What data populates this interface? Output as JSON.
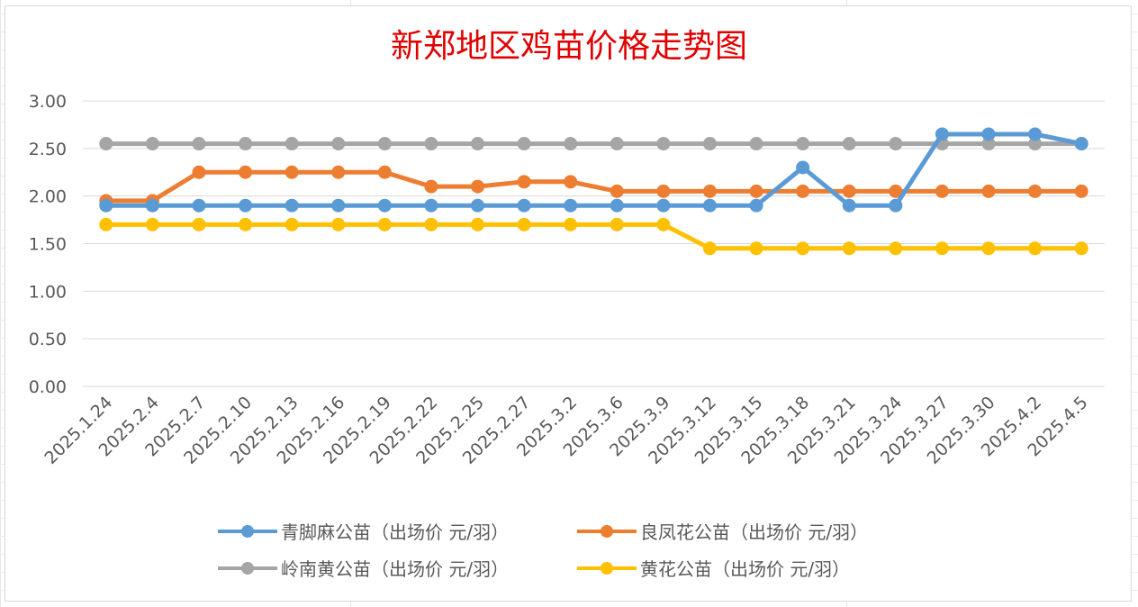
{
  "chart_data": {
    "type": "line",
    "title": "新郑地区鸡苗价格走势图",
    "xlabel": "",
    "ylabel": "",
    "ylim": [
      0,
      3
    ],
    "ytick_step": 0.5,
    "ytick_labels": [
      "0.00",
      "0.50",
      "1.00",
      "1.50",
      "2.00",
      "2.50",
      "3.00"
    ],
    "grid": true,
    "legend_position": "bottom",
    "categories": [
      "2025.1.24",
      "2025.2.4",
      "2025.2.7",
      "2025.2.10",
      "2025.2.13",
      "2025.2.16",
      "2025.2.19",
      "2025.2.22",
      "2025.2.25",
      "2025.2.27",
      "2025.3.2",
      "2025.3.6",
      "2025.3.9",
      "2025.3.12",
      "2025.3.15",
      "2025.3.18",
      "2025.3.21",
      "2025.3.24",
      "2025.3.27",
      "2025.3.30",
      "2025.4.2",
      "2025.4.5"
    ],
    "series": [
      {
        "name": "岭南黄公苗（出场价 元/羽）",
        "color": "#a5a5a5",
        "values": [
          2.55,
          2.55,
          2.55,
          2.55,
          2.55,
          2.55,
          2.55,
          2.55,
          2.55,
          2.55,
          2.55,
          2.55,
          2.55,
          2.55,
          2.55,
          2.55,
          2.55,
          2.55,
          2.55,
          2.55,
          2.55,
          2.55
        ]
      },
      {
        "name": "良凤花公苗（出场价 元/羽）",
        "color": "#ed7d31",
        "values": [
          1.95,
          1.95,
          2.25,
          2.25,
          2.25,
          2.25,
          2.25,
          2.1,
          2.1,
          2.15,
          2.15,
          2.05,
          2.05,
          2.05,
          2.05,
          2.05,
          2.05,
          2.05,
          2.05,
          2.05,
          2.05,
          2.05
        ]
      },
      {
        "name": "黄花公苗（出场价 元/羽）",
        "color": "#ffc000",
        "values": [
          1.7,
          1.7,
          1.7,
          1.7,
          1.7,
          1.7,
          1.7,
          1.7,
          1.7,
          1.7,
          1.7,
          1.7,
          1.7,
          1.45,
          1.45,
          1.45,
          1.45,
          1.45,
          1.45,
          1.45,
          1.45,
          1.45
        ]
      },
      {
        "name": "青脚麻公苗（出场价 元/羽）",
        "color": "#5b9bd5",
        "values": [
          1.9,
          1.9,
          1.9,
          1.9,
          1.9,
          1.9,
          1.9,
          1.9,
          1.9,
          1.9,
          1.9,
          1.9,
          1.9,
          1.9,
          1.9,
          2.3,
          1.9,
          1.9,
          2.65,
          2.65,
          2.65,
          2.55
        ]
      }
    ],
    "legend_order": [
      3,
      1,
      0,
      2
    ]
  }
}
